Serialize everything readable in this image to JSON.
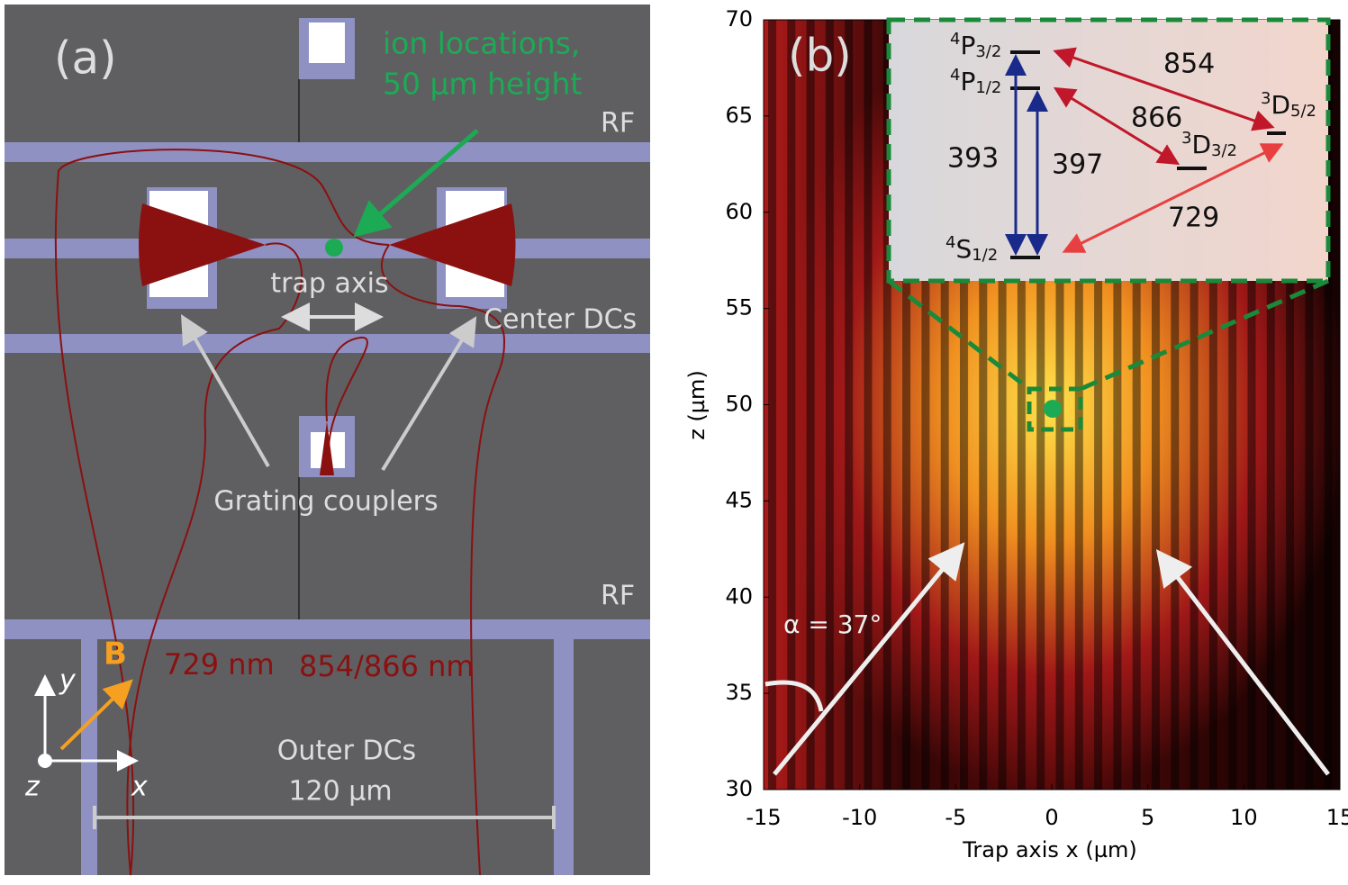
{
  "panel_a": {
    "label": "(a)",
    "ion_label": [
      "ion locations,",
      "50 µm height"
    ],
    "rf_top": "RF",
    "rf_bottom": "RF",
    "trap_axis": "trap axis",
    "center_dcs": "Center DCs",
    "grating_couplers": "Grating couplers",
    "wl_729": "729 nm",
    "wl_854": "854/866 nm",
    "outer_dcs": [
      "Outer DCs",
      "120 µm"
    ],
    "axis_y": "y",
    "axis_x": "x",
    "axis_z": "z",
    "b_field": "B"
  },
  "panel_b": {
    "label": "(b)",
    "x_label": "Trap axis x (µm)",
    "y_label": "z (µm)",
    "xlim": [
      -15,
      15
    ],
    "ylim": [
      30,
      70
    ],
    "xticks": [
      -15,
      -10,
      -5,
      0,
      5,
      10,
      15
    ],
    "yticks": [
      30,
      35,
      40,
      45,
      50,
      55,
      60,
      65,
      70
    ],
    "alpha": "α = 37°",
    "levels": [
      {
        "sup": "4",
        "main": "P",
        "sub": "3/2"
      },
      {
        "sup": "4",
        "main": "P",
        "sub": "1/2"
      },
      {
        "sup": "4",
        "main": "S",
        "sub": "1/2"
      },
      {
        "sup": "3",
        "main": "D",
        "sub": "3/2"
      },
      {
        "sup": "3",
        "main": "D",
        "sub": "5/2"
      }
    ],
    "transitions": [
      "854",
      "866",
      "393",
      "397",
      "729"
    ]
  }
}
